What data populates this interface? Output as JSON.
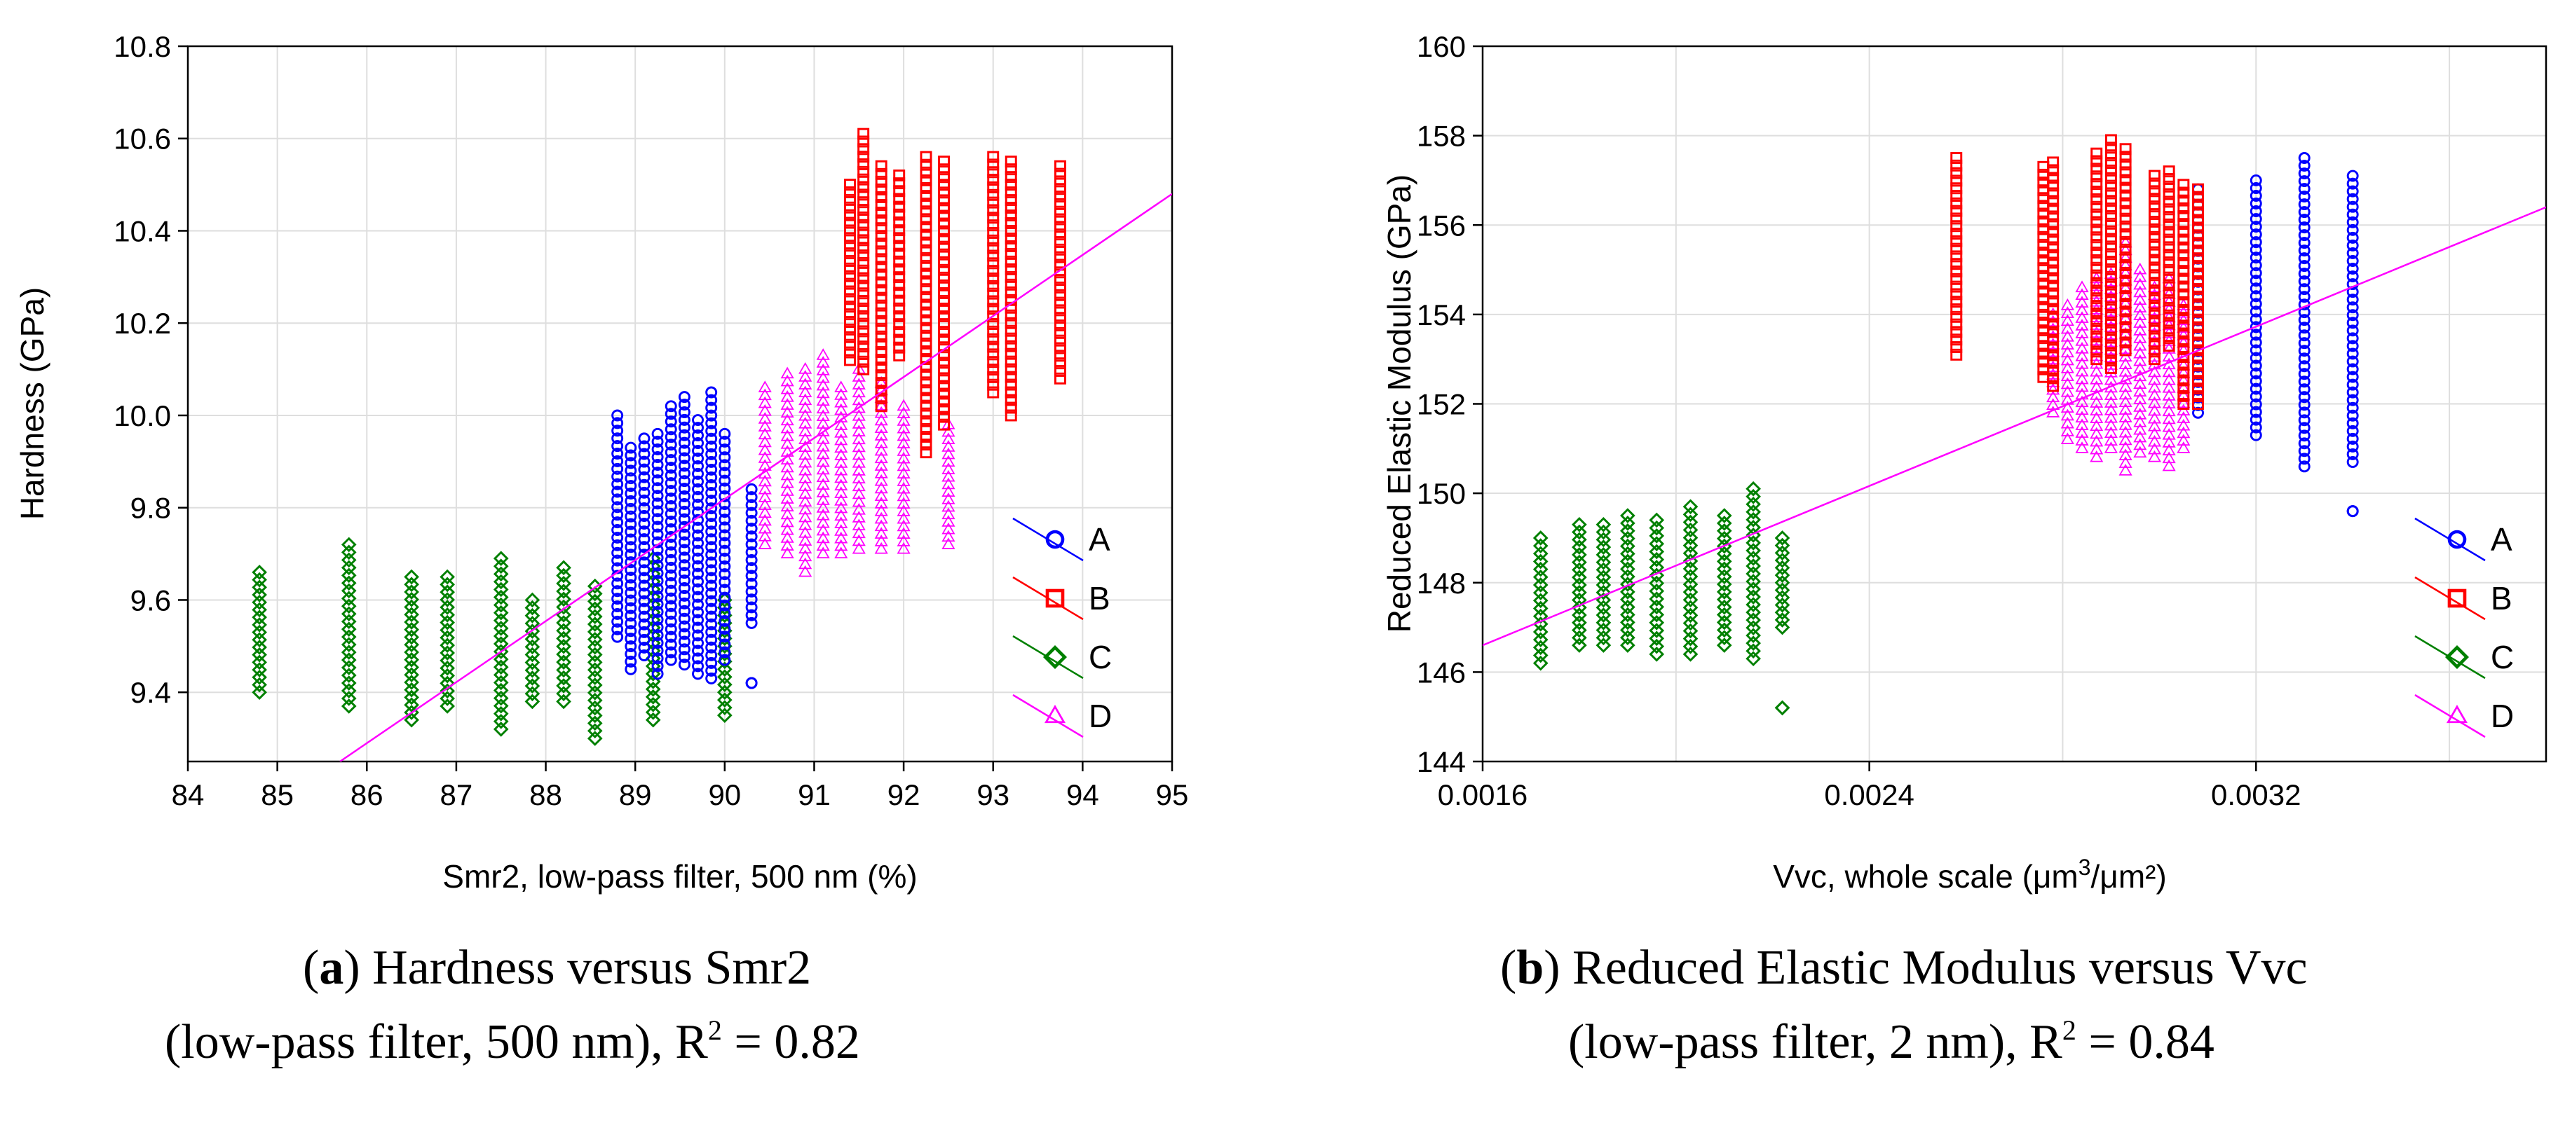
{
  "chart_data": [
    {
      "id": "a",
      "type": "scatter",
      "xlabel": "Smr2, low-pass filter, 500 nm (%)",
      "ylabel": "Hardness (GPa)",
      "xlim": [
        84,
        95
      ],
      "ylim": [
        9.25,
        10.8
      ],
      "xticks": [
        84,
        85,
        86,
        87,
        88,
        89,
        90,
        91,
        92,
        93,
        94,
        95
      ],
      "yticks": [
        9.4,
        9.6,
        9.8,
        10.0,
        10.2,
        10.4,
        10.6,
        10.8
      ],
      "xtick_labels": [
        "84",
        "85",
        "86",
        "87",
        "88",
        "89",
        "90",
        "91",
        "92",
        "93",
        "94",
        "95"
      ],
      "ytick_labels": [
        "9.4",
        "9.6",
        "9.8",
        "10.0",
        "10.2",
        "10.4",
        "10.6",
        "10.8"
      ],
      "grid": true,
      "legend_position": "right",
      "fit_line": {
        "x": [
          85.7,
          95
        ],
        "y": [
          9.25,
          10.48
        ],
        "color": "#ff00ff"
      },
      "series": [
        {
          "name": "A",
          "marker": "circle",
          "color": "#0000ff",
          "columns": [
            {
              "x": 88.8,
              "ymin": 9.52,
              "ymax": 10.0
            },
            {
              "x": 88.95,
              "ymin": 9.45,
              "ymax": 9.93
            },
            {
              "x": 89.1,
              "ymin": 9.48,
              "ymax": 9.95
            },
            {
              "x": 89.25,
              "ymin": 9.44,
              "ymax": 9.96
            },
            {
              "x": 89.4,
              "ymin": 9.47,
              "ymax": 10.02
            },
            {
              "x": 89.55,
              "ymin": 9.46,
              "ymax": 10.04
            },
            {
              "x": 89.7,
              "ymin": 9.44,
              "ymax": 9.99
            },
            {
              "x": 89.85,
              "ymin": 9.43,
              "ymax": 10.05
            },
            {
              "x": 90.0,
              "ymin": 9.47,
              "ymax": 9.96
            },
            {
              "x": 90.3,
              "ymin": 9.55,
              "ymax": 9.84
            },
            {
              "x": 90.3,
              "ymin": 9.42,
              "ymax": 9.42
            }
          ]
        },
        {
          "name": "B",
          "marker": "square",
          "color": "#ff0000",
          "columns": [
            {
              "x": 91.4,
              "ymin": 10.12,
              "ymax": 10.5
            },
            {
              "x": 91.55,
              "ymin": 10.1,
              "ymax": 10.61
            },
            {
              "x": 91.75,
              "ymin": 10.02,
              "ymax": 10.54
            },
            {
              "x": 91.95,
              "ymin": 10.13,
              "ymax": 10.52
            },
            {
              "x": 92.25,
              "ymin": 9.92,
              "ymax": 10.56
            },
            {
              "x": 92.45,
              "ymin": 9.98,
              "ymax": 10.55
            },
            {
              "x": 93.0,
              "ymin": 10.05,
              "ymax": 10.56
            },
            {
              "x": 93.2,
              "ymin": 10.0,
              "ymax": 10.55
            },
            {
              "x": 93.75,
              "ymin": 10.08,
              "ymax": 10.54
            }
          ]
        },
        {
          "name": "C",
          "marker": "diamond",
          "color": "#008000",
          "columns": [
            {
              "x": 84.8,
              "ymin": 9.4,
              "ymax": 9.66
            },
            {
              "x": 85.8,
              "ymin": 9.37,
              "ymax": 9.72
            },
            {
              "x": 86.5,
              "ymin": 9.34,
              "ymax": 9.65
            },
            {
              "x": 86.9,
              "ymin": 9.37,
              "ymax": 9.65
            },
            {
              "x": 87.5,
              "ymin": 9.32,
              "ymax": 9.69
            },
            {
              "x": 87.85,
              "ymin": 9.38,
              "ymax": 9.6
            },
            {
              "x": 88.2,
              "ymin": 9.38,
              "ymax": 9.67
            },
            {
              "x": 88.55,
              "ymin": 9.3,
              "ymax": 9.63
            },
            {
              "x": 89.2,
              "ymin": 9.34,
              "ymax": 9.69
            },
            {
              "x": 90.0,
              "ymin": 9.35,
              "ymax": 9.6
            }
          ]
        },
        {
          "name": "D",
          "marker": "triangle",
          "color": "#ff00ff",
          "columns": [
            {
              "x": 90.45,
              "ymin": 9.72,
              "ymax": 10.06
            },
            {
              "x": 90.7,
              "ymin": 9.7,
              "ymax": 10.09
            },
            {
              "x": 90.9,
              "ymin": 9.66,
              "ymax": 10.1
            },
            {
              "x": 91.1,
              "ymin": 9.7,
              "ymax": 10.13
            },
            {
              "x": 91.3,
              "ymin": 9.7,
              "ymax": 10.06
            },
            {
              "x": 91.5,
              "ymin": 9.71,
              "ymax": 10.1
            },
            {
              "x": 91.75,
              "ymin": 9.71,
              "ymax": 10.07
            },
            {
              "x": 92.0,
              "ymin": 9.71,
              "ymax": 10.02
            },
            {
              "x": 92.5,
              "ymin": 9.72,
              "ymax": 9.98
            }
          ]
        }
      ]
    },
    {
      "id": "b",
      "type": "scatter",
      "xlabel_main": "Vvc, whole scale (μm",
      "xlabel_sup": "3",
      "xlabel_tail": "/μm²)",
      "ylabel": "Reduced Elastic Modulus (GPa)",
      "xlim": [
        0.0016,
        0.0038
      ],
      "ylim": [
        144,
        160
      ],
      "xticks": [
        0.0016,
        0.0024,
        0.0032
      ],
      "xtick_labels": [
        "0.0016",
        "0.0024",
        "0.0032"
      ],
      "xgrid": [
        0.0016,
        0.002,
        0.0024,
        0.0028,
        0.0032,
        0.0036
      ],
      "yticks": [
        144,
        146,
        148,
        150,
        152,
        154,
        156,
        158,
        160
      ],
      "ytick_labels": [
        "144",
        "146",
        "148",
        "150",
        "152",
        "154",
        "156",
        "158",
        "160"
      ],
      "grid": true,
      "legend_position": "right",
      "fit_line": {
        "x": [
          0.0016,
          0.0038
        ],
        "y": [
          146.6,
          156.4
        ],
        "color": "#ff00ff"
      },
      "series": [
        {
          "name": "A",
          "marker": "circle",
          "color": "#0000ff",
          "columns": [
            {
              "x": 0.00308,
              "ymin": 151.8,
              "ymax": 156.8
            },
            {
              "x": 0.0032,
              "ymin": 151.3,
              "ymax": 157.0
            },
            {
              "x": 0.0033,
              "ymin": 150.6,
              "ymax": 157.5
            },
            {
              "x": 0.0034,
              "ymin": 150.7,
              "ymax": 157.1
            },
            {
              "x": 0.0034,
              "ymin": 149.6,
              "ymax": 149.6
            }
          ]
        },
        {
          "name": "B",
          "marker": "square",
          "color": "#ff0000",
          "columns": [
            {
              "x": 0.00258,
              "ymin": 153.1,
              "ymax": 157.5
            },
            {
              "x": 0.00276,
              "ymin": 152.6,
              "ymax": 157.3
            },
            {
              "x": 0.00278,
              "ymin": 152.4,
              "ymax": 157.4
            },
            {
              "x": 0.00287,
              "ymin": 153.0,
              "ymax": 157.6
            },
            {
              "x": 0.0029,
              "ymin": 152.8,
              "ymax": 157.9
            },
            {
              "x": 0.00293,
              "ymin": 153.2,
              "ymax": 157.7
            },
            {
              "x": 0.00299,
              "ymin": 153.0,
              "ymax": 157.1
            },
            {
              "x": 0.00302,
              "ymin": 153.3,
              "ymax": 157.2
            },
            {
              "x": 0.00305,
              "ymin": 152.0,
              "ymax": 156.9
            },
            {
              "x": 0.00308,
              "ymin": 152.0,
              "ymax": 156.8
            }
          ]
        },
        {
          "name": "C",
          "marker": "diamond",
          "color": "#008000",
          "columns": [
            {
              "x": 0.00172,
              "ymin": 146.2,
              "ymax": 149.0
            },
            {
              "x": 0.0018,
              "ymin": 146.6,
              "ymax": 149.3
            },
            {
              "x": 0.00185,
              "ymin": 146.6,
              "ymax": 149.3
            },
            {
              "x": 0.0019,
              "ymin": 146.6,
              "ymax": 149.5
            },
            {
              "x": 0.00196,
              "ymin": 146.4,
              "ymax": 149.4
            },
            {
              "x": 0.00203,
              "ymin": 146.4,
              "ymax": 149.7
            },
            {
              "x": 0.0021,
              "ymin": 146.6,
              "ymax": 149.5
            },
            {
              "x": 0.00216,
              "ymin": 146.3,
              "ymax": 150.1
            },
            {
              "x": 0.00222,
              "ymin": 147.0,
              "ymax": 149.0
            },
            {
              "x": 0.00222,
              "ymin": 145.2,
              "ymax": 145.2
            }
          ]
        },
        {
          "name": "D",
          "marker": "triangle",
          "color": "#ff00ff",
          "columns": [
            {
              "x": 0.00278,
              "ymin": 151.8,
              "ymax": 154.0
            },
            {
              "x": 0.00281,
              "ymin": 151.2,
              "ymax": 154.2
            },
            {
              "x": 0.00284,
              "ymin": 151.0,
              "ymax": 154.6
            },
            {
              "x": 0.00287,
              "ymin": 150.8,
              "ymax": 154.8
            },
            {
              "x": 0.0029,
              "ymin": 151.0,
              "ymax": 154.9
            },
            {
              "x": 0.00293,
              "ymin": 150.5,
              "ymax": 155.6
            },
            {
              "x": 0.00296,
              "ymin": 150.9,
              "ymax": 155.0
            },
            {
              "x": 0.00299,
              "ymin": 150.8,
              "ymax": 154.6
            },
            {
              "x": 0.00302,
              "ymin": 150.6,
              "ymax": 154.8
            },
            {
              "x": 0.00305,
              "ymin": 151.0,
              "ymax": 154.2
            }
          ]
        }
      ]
    }
  ],
  "captions": {
    "a": {
      "letter": "a",
      "line1_text": ") Hardness versus Smr2",
      "line2_text": "(low-pass filter, 500 nm), R",
      "r2_sup": "2",
      "r2_value": " = 0.82"
    },
    "b": {
      "letter": "b",
      "line1_text": ") Reduced Elastic Modulus versus Vvc",
      "line2_text": "(low-pass filter, 2 nm), R",
      "r2_sup": "2",
      "r2_value": " = 0.84"
    }
  }
}
